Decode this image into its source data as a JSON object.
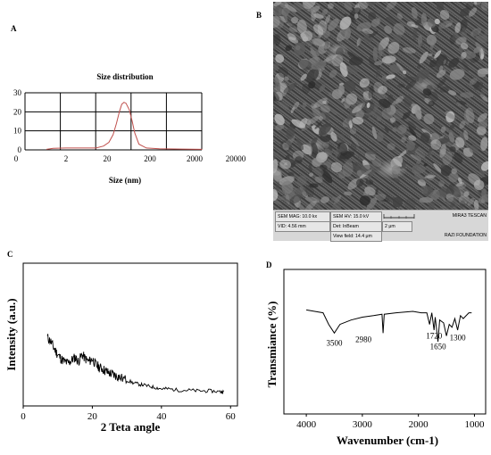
{
  "panels": {
    "a_label": "A",
    "b_label": "B",
    "c_label": "C",
    "d_label": "D"
  },
  "chart_data": [
    {
      "panel": "A",
      "type": "line",
      "title": "Size distribution",
      "xlabel": "Size (nm)",
      "ylabel": "",
      "x_scale": "log",
      "x_tick_labels": [
        "0",
        "2",
        "20",
        "200",
        "2000",
        "20000"
      ],
      "y_tick_labels": [
        "0",
        "10",
        "20",
        "30"
      ],
      "ylim": [
        0,
        30
      ],
      "grid": true,
      "series": [
        {
          "color": "#c0504d",
          "x": [
            0.7,
            1,
            2,
            5,
            10,
            15,
            20,
            25,
            30,
            35,
            40,
            45,
            50,
            60,
            70,
            80,
            100,
            150,
            300,
            1000,
            3000
          ],
          "y": [
            0.3,
            0.8,
            1,
            1,
            1,
            2,
            4,
            8,
            14,
            20,
            24,
            25,
            24.5,
            21,
            15,
            9,
            3,
            1,
            0.6,
            0.4,
            0.3
          ]
        }
      ]
    },
    {
      "panel": "C",
      "type": "line",
      "title": "",
      "xlabel": "2 Teta angle",
      "ylabel": "Intensity (a.u.)",
      "x_tick_labels": [
        "0",
        "20",
        "40",
        "60"
      ],
      "xlim": [
        0,
        62
      ],
      "ylim": [
        0,
        100
      ],
      "grid": false,
      "series": [
        {
          "color": "#000000",
          "x": [
            7,
            8,
            9,
            10,
            11,
            12,
            13,
            14,
            15,
            16,
            17,
            18,
            19,
            20,
            21,
            22,
            23,
            24,
            25,
            26,
            27,
            28,
            30,
            32,
            34,
            36,
            38,
            40,
            42,
            45,
            48,
            51,
            54,
            57,
            58
          ],
          "y": [
            48,
            45,
            40,
            36,
            33,
            31,
            30,
            32,
            34,
            31,
            36,
            33,
            31,
            33,
            29,
            27,
            26,
            24,
            23,
            22,
            21,
            20,
            18,
            16,
            15,
            14,
            13,
            12,
            12,
            11,
            11,
            10.5,
            10.5,
            10,
            10
          ]
        }
      ]
    },
    {
      "panel": "D",
      "type": "line",
      "title": "",
      "xlabel": "Wavenumber (cm-1)",
      "ylabel": "Transmiance (%)",
      "x_tick_labels": [
        "4000",
        "3000",
        "2000",
        "1000"
      ],
      "xlim": [
        4400,
        800
      ],
      "ylim": [
        0,
        100
      ],
      "grid": false,
      "annotations": [
        "3500",
        "2980",
        "1720",
        "1650",
        "1300"
      ],
      "series": [
        {
          "color": "#000000",
          "x": [
            4000,
            3850,
            3700,
            3600,
            3500,
            3400,
            3200,
            3000,
            2800,
            2650,
            2630,
            2610,
            2400,
            2100,
            1950,
            1850,
            1800,
            1760,
            1720,
            1700,
            1650,
            1620,
            1550,
            1500,
            1450,
            1400,
            1350,
            1300,
            1250,
            1200,
            1100,
            1050
          ],
          "y": [
            72,
            71,
            70,
            62,
            56,
            62,
            65,
            67,
            68,
            69,
            56,
            69,
            70,
            71,
            70,
            70,
            62,
            70,
            58,
            67,
            50,
            65,
            63,
            54,
            62,
            60,
            66,
            58,
            68,
            66,
            70,
            70
          ]
        }
      ]
    }
  ],
  "sem_info": {
    "mag": "SEM MAG: 10.0 kx",
    "hv": "SEM HV: 15.0 kV",
    "brand": "MIRA3 TESCAN",
    "vid": "VID: 4.56 mm",
    "det": "Det: InBeam",
    "scale": "2 μm",
    "view_field": "View field: 14.4 μm",
    "org": "RAZI FOUNDATION"
  }
}
